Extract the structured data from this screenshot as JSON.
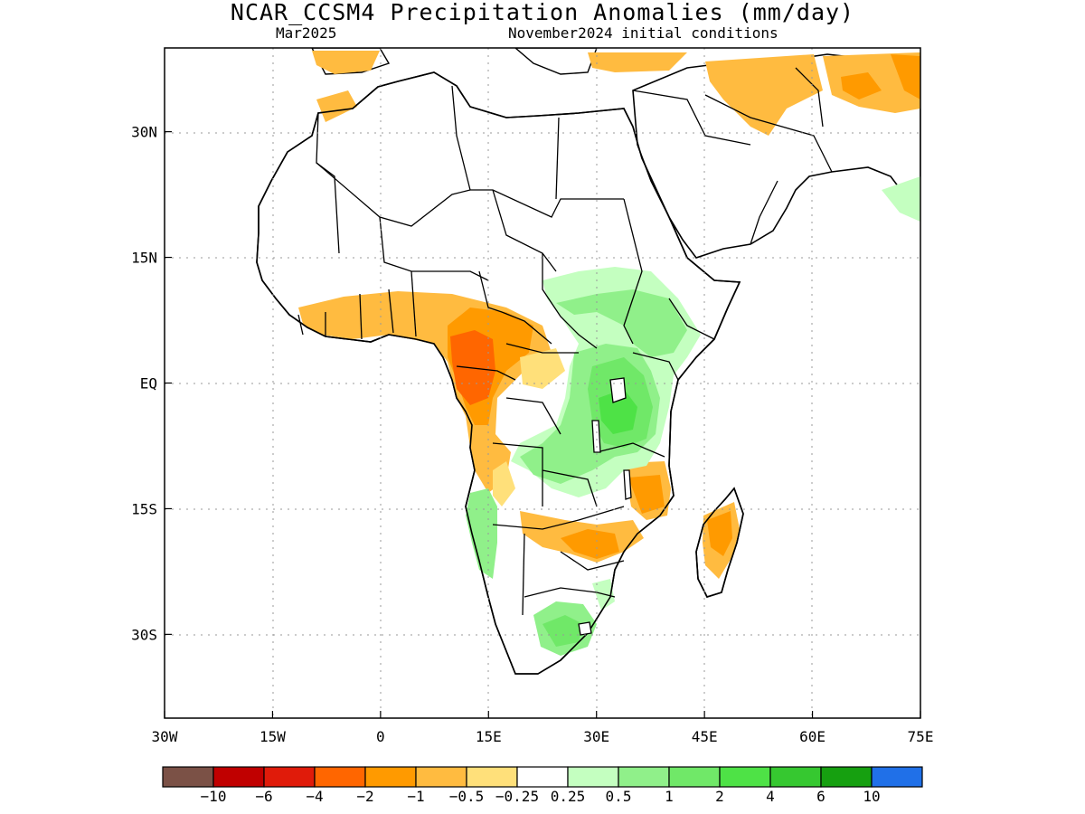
{
  "title": "NCAR_CCSM4 Precipitation Anomalies (mm/day)",
  "valid_month": "Mar2025",
  "initial_conditions": "November2024 initial conditions",
  "map": {
    "lon_range": [
      -30,
      75
    ],
    "lat_range": [
      -40,
      40
    ],
    "x_ticks": [
      {
        "value": -30,
        "label": "30W"
      },
      {
        "value": -15,
        "label": "15W"
      },
      {
        "value": 0,
        "label": "0"
      },
      {
        "value": 15,
        "label": "15E"
      },
      {
        "value": 30,
        "label": "30E"
      },
      {
        "value": 45,
        "label": "45E"
      },
      {
        "value": 60,
        "label": "60E"
      },
      {
        "value": 75,
        "label": "75E"
      }
    ],
    "y_ticks": [
      {
        "value": 30,
        "label": "30N"
      },
      {
        "value": 15,
        "label": "15N"
      },
      {
        "value": 0,
        "label": "EQ"
      },
      {
        "value": -15,
        "label": "15S"
      },
      {
        "value": -30,
        "label": "30S"
      }
    ],
    "gridlines": "dotted",
    "region": "Africa"
  },
  "legend": {
    "colors": [
      "#7b5146",
      "#c00000",
      "#e01b0a",
      "#ff6600",
      "#ff9a00",
      "#ffbb40",
      "#ffe07a",
      "#ffffff",
      "#c4ffc0",
      "#90f08a",
      "#70e868",
      "#4ee246",
      "#36c830",
      "#16a010",
      "#2070e8"
    ],
    "labels": [
      "−10",
      "−6",
      "−4",
      "−2",
      "−1",
      "−0.5",
      "−0.25",
      "0.25",
      "0.5",
      "1",
      "2",
      "4",
      "6",
      "10"
    ]
  }
}
